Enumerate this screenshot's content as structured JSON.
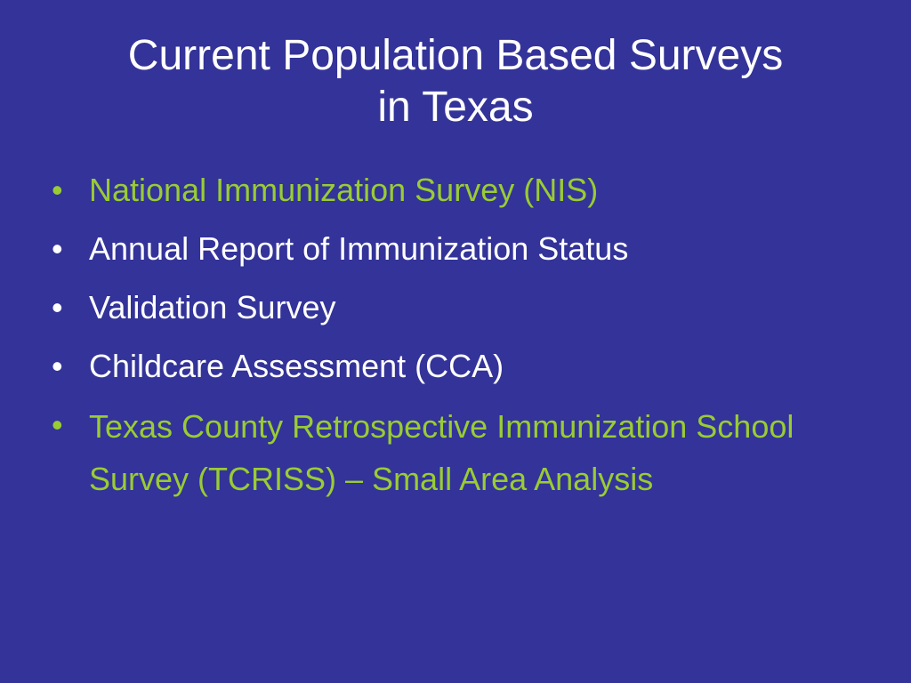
{
  "slide": {
    "title_line1": "Current Population Based Surveys",
    "title_line2": "in Texas",
    "bullet_marker": "•",
    "bullets": [
      {
        "text": "National Immunization Survey (NIS)",
        "color": "#99cc33"
      },
      {
        "text": "Annual Report of Immunization Status",
        "color": "#ffffff"
      },
      {
        "text": "Validation Survey",
        "color": "#ffffff"
      },
      {
        "text": "Childcare Assessment (CCA)",
        "color": "#ffffff"
      },
      {
        "text": "Texas County Retrospective Immunization School Survey (TCRISS) – Small Area Analysis",
        "color": "#99cc33"
      }
    ],
    "colors": {
      "background": "#333399",
      "title": "#ffffff",
      "highlight": "#99cc33"
    }
  }
}
